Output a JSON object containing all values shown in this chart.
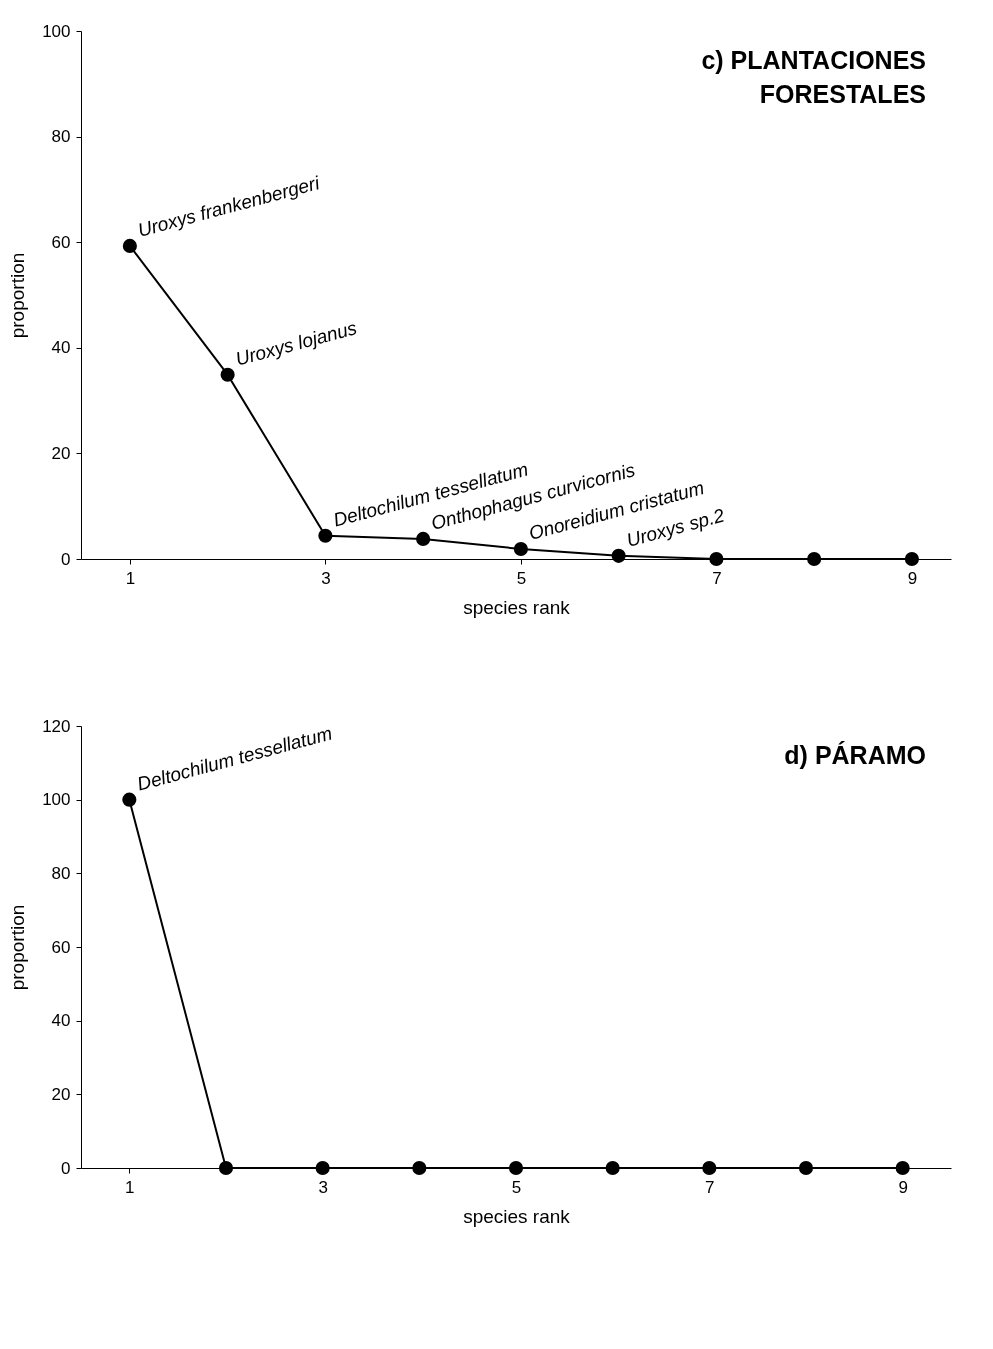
{
  "chart_data": [
    {
      "type": "line",
      "title": "c) PLANTACIONES\nFORESTALES",
      "xlabel": "species rank",
      "ylabel": "proportion",
      "x": [
        1,
        2,
        3,
        4,
        5,
        6,
        7,
        8,
        9
      ],
      "series": [
        {
          "color": "#000000",
          "values": [
            59.3,
            34.9,
            4.4,
            3.8,
            1.9,
            0.6,
            0,
            0,
            0
          ]
        }
      ],
      "xlim": [
        0.5,
        9.4
      ],
      "xticks": [
        1,
        3,
        5,
        7,
        9
      ],
      "ylim": [
        0,
        100
      ],
      "yticks": [
        0,
        20,
        40,
        60,
        80,
        100
      ],
      "marker": "circle",
      "line_style": "solid",
      "annotations": [
        {
          "text": "Uroxys frankenbergeri",
          "x": 1,
          "y": 59.3
        },
        {
          "text": "Uroxys lojanus",
          "x": 2,
          "y": 34.9
        },
        {
          "text": "Deltochilum tessellatum",
          "x": 3,
          "y": 4.4
        },
        {
          "text": "Onthophagus curvicornis",
          "x": 4,
          "y": 3.8
        },
        {
          "text": "Onoreidium cristatum",
          "x": 5,
          "y": 1.9
        },
        {
          "text": "Uroxys sp.2",
          "x": 6,
          "y": 0.6
        }
      ]
    },
    {
      "type": "line",
      "title": "d) PÁRAMO",
      "xlabel": "species rank",
      "ylabel": "proportion",
      "x": [
        1,
        2,
        3,
        4,
        5,
        6,
        7,
        8,
        9
      ],
      "series": [
        {
          "color": "#000000",
          "values": [
            100,
            0,
            0,
            0,
            0,
            0,
            0,
            0,
            0
          ]
        }
      ],
      "xlim": [
        0.5,
        9.5
      ],
      "xticks": [
        1,
        3,
        5,
        7,
        9
      ],
      "ylim": [
        0,
        120
      ],
      "yticks": [
        0,
        20,
        40,
        60,
        80,
        100,
        120
      ],
      "marker": "circle",
      "line_style": "solid",
      "annotations": [
        {
          "text": "Deltochilum tessellatum",
          "x": 1,
          "y": 100
        }
      ]
    }
  ]
}
